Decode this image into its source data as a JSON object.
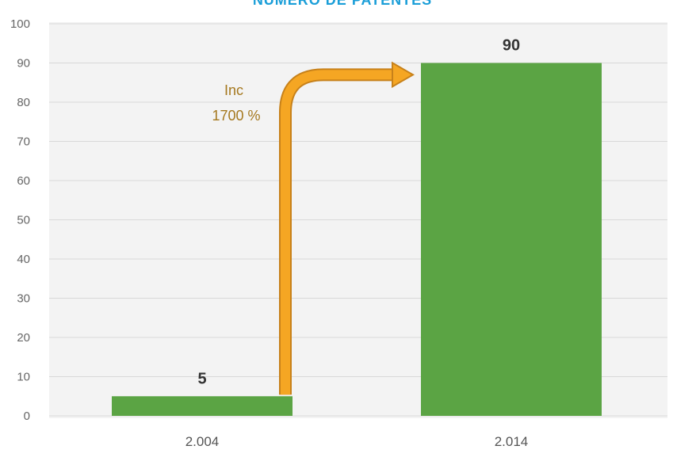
{
  "chart_data": {
    "type": "bar",
    "title": "NÚMERO DE PATENTES",
    "categories": [
      "2.004",
      "2.014"
    ],
    "values": [
      5,
      90
    ],
    "data_labels": [
      "5",
      "90"
    ],
    "ylim": [
      0,
      100
    ],
    "yticks": [
      0,
      10,
      20,
      30,
      40,
      50,
      60,
      70,
      80,
      90,
      100
    ],
    "xlabel": "",
    "ylabel": "",
    "grid": true,
    "legend": "none",
    "colors": {
      "bar": "#5ba444",
      "arrow": "#f5a623",
      "arrow_outline": "#c7811a",
      "title": "#1a9ed8",
      "annotation": "#a5781e",
      "background": "#f3f3f3"
    },
    "annotation": {
      "line1": "Inc",
      "line2": "1700 %",
      "from_category": "2.004",
      "to_category": "2.014"
    }
  }
}
